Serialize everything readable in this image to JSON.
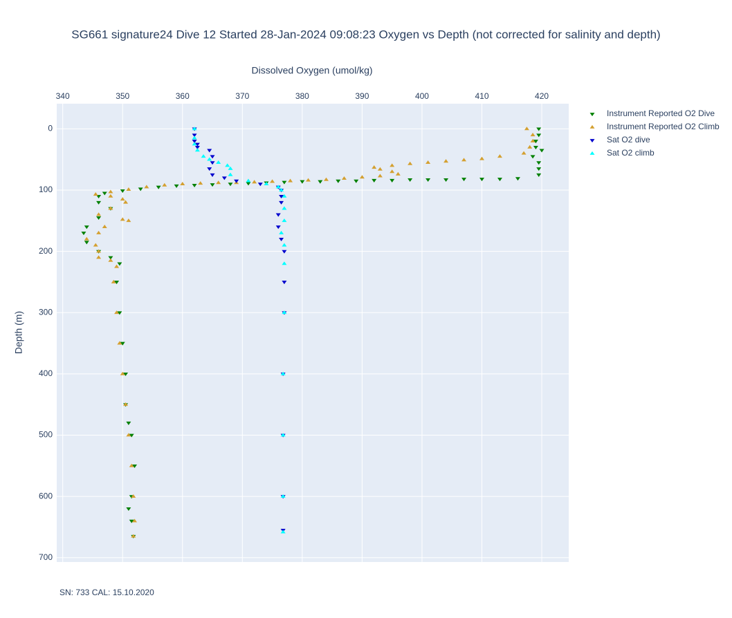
{
  "chart_data": {
    "type": "scatter",
    "title": "SG661 signature24 Dive 12 Started 28-Jan-2024 09:08:23  Oxygen vs Depth (not corrected for salinity and depth)",
    "x_label": "Dissolved Oxygen (umol/kg)",
    "y_label": "Depth (m)",
    "annotation": "SN: 733  CAL: 15.10.2020",
    "xlim": [
      339,
      424.5
    ],
    "ylim": [
      707,
      -41
    ],
    "xticks": [
      340,
      350,
      360,
      370,
      380,
      390,
      400,
      410,
      420
    ],
    "yticks": [
      0,
      100,
      200,
      300,
      400,
      500,
      600,
      700
    ],
    "grid": true,
    "x_axis_position": "top",
    "legend": "right",
    "series": [
      {
        "name": "Instrument Reported O2 Dive",
        "color": "green",
        "symbol": "triangle-down",
        "x": [
          419.5,
          419.5,
          419,
          419,
          420,
          418.5,
          419.5,
          419.5,
          419.5,
          416,
          413,
          410,
          407,
          404,
          401,
          398,
          395,
          392,
          389,
          386,
          383,
          380,
          377,
          374,
          371,
          368,
          365,
          362,
          359,
          356,
          353,
          350,
          347,
          346,
          346,
          348,
          346,
          344,
          343.5,
          344,
          346,
          348,
          349.5,
          349,
          349.5,
          350,
          350.5,
          350.5,
          351,
          351.5,
          352,
          351.5,
          351,
          351.5,
          351.8
        ],
        "y": [
          0,
          10,
          20,
          30,
          35,
          45,
          55,
          65,
          75,
          81,
          82,
          82,
          82,
          83,
          83,
          83,
          84,
          84,
          85,
          85,
          86,
          86,
          87,
          88,
          89,
          90,
          91,
          92,
          93,
          95,
          98,
          101,
          105,
          110,
          120,
          130,
          145,
          160,
          170,
          185,
          200,
          210,
          220,
          250,
          300,
          350,
          400,
          450,
          480,
          500,
          550,
          600,
          620,
          640,
          665
        ]
      },
      {
        "name": "Instrument Reported O2 Climb",
        "color": "#d4a030",
        "symbol": "triangle-up",
        "x": [
          417.5,
          418.5,
          418.5,
          418,
          417,
          413,
          410,
          407,
          404,
          401,
          398,
          395,
          392,
          393,
          395,
          396,
          393,
          390,
          387,
          384,
          381,
          378,
          375,
          372,
          369,
          366,
          363,
          360,
          357,
          354,
          351,
          348,
          345.5,
          348,
          350,
          350.5,
          348,
          346,
          350,
          351,
          347,
          346,
          344,
          345.5,
          346,
          346,
          348,
          349,
          348.5,
          349,
          349.5,
          350,
          350.5,
          351,
          351.5,
          351.8,
          352,
          351.8
        ],
        "y": [
          0,
          10,
          20,
          30,
          40,
          45,
          49,
          51,
          53,
          55,
          57,
          60,
          63,
          66,
          70,
          74,
          77,
          79,
          81,
          83,
          84,
          85,
          86,
          87,
          88,
          88,
          89,
          90,
          92,
          95,
          99,
          103,
          107,
          110,
          115,
          120,
          130,
          140,
          148,
          150,
          160,
          170,
          180,
          190,
          200,
          210,
          215,
          225,
          250,
          300,
          350,
          400,
          450,
          500,
          550,
          600,
          640,
          665
        ]
      },
      {
        "name": "Sat O2 dive",
        "color": "#0000cd",
        "symbol": "triangle-down",
        "x": [
          362,
          362,
          362,
          362.5,
          362.5,
          364.5,
          365,
          365,
          364.5,
          365,
          367,
          369,
          373,
          376,
          376.5,
          376.5,
          376.5,
          376,
          376,
          376.5,
          377,
          377,
          377,
          376.8,
          376.8,
          376.8,
          376.8
        ],
        "y": [
          0,
          10,
          20,
          25,
          30,
          35,
          45,
          55,
          65,
          75,
          80,
          85,
          90,
          95,
          100,
          110,
          120,
          140,
          160,
          180,
          200,
          250,
          300,
          400,
          500,
          600,
          655
        ]
      },
      {
        "name": "Sat O2 climb",
        "color": "cyan",
        "symbol": "triangle-up",
        "x": [
          362,
          362,
          362,
          362.5,
          363.5,
          364.5,
          366,
          367.5,
          368,
          368,
          371,
          374,
          376,
          376.5,
          377,
          377,
          377,
          376.5,
          377,
          377,
          377,
          376.8,
          376.8,
          376.8,
          376.8
        ],
        "y": [
          0,
          15,
          25,
          35,
          45,
          50,
          55,
          60,
          65,
          75,
          85,
          90,
          95,
          100,
          110,
          130,
          150,
          170,
          190,
          220,
          300,
          400,
          500,
          600,
          658
        ]
      }
    ]
  }
}
